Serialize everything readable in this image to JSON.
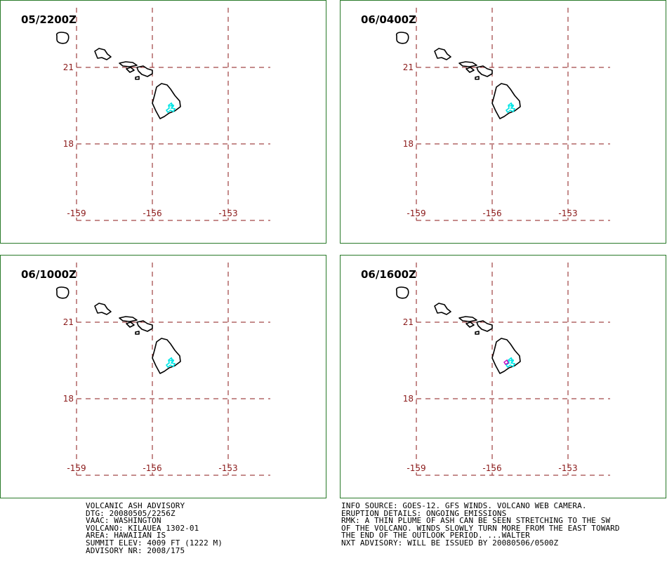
{
  "panels": [
    {
      "time": "05/2200Z"
    },
    {
      "time": "06/0400Z"
    },
    {
      "time": "06/1000Z"
    },
    {
      "time": "06/1600Z"
    }
  ],
  "grid": {
    "lat_labels": [
      "21",
      "18"
    ],
    "lon_labels": [
      "-159",
      "-156",
      "-153"
    ],
    "line_color": "#8b1a1a"
  },
  "colors": {
    "coast": "#000000",
    "ash_obs": "#00e5e5",
    "ash_fcst": "#c000c0",
    "frame": "#2a7a2a"
  },
  "advisory_left": [
    "VOLCANIC ASH ADVISORY",
    "DTG: 20080505/2256Z",
    "VAAC: WASHINGTON",
    "VOLCANO: KILAUEA 1302-01",
    "AREA: HAWAIIAN IS",
    "SUMMIT ELEV: 4009 FT (1222 M)",
    "ADVISORY NR: 2008/175"
  ],
  "advisory_right": [
    "INFO SOURCE: GOES-12. GFS WINDS. VOLCANO WEB CAMERA.",
    "ERUPTION DETAILS: ONGOING EMISSIONS",
    "RMK: A THIN PLUME OF ASH CAN BE SEEN STRETCHING TO THE SW",
    "OF THE VOLCANO. WINDS SLOWLY TURN MORE FROM THE EAST TOWARD",
    "THE END OF THE OUTLOOK PERIOD. ...WALTER",
    "NXT ADVISORY: WILL BE ISSUED BY 20080506/0500Z"
  ]
}
